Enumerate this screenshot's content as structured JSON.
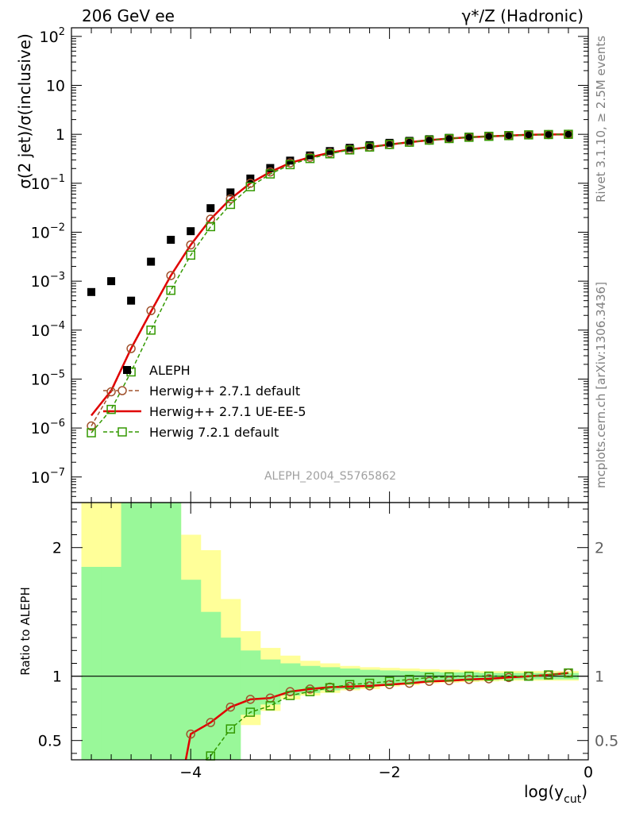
{
  "header": {
    "left": "206 GeV ee",
    "right": "γ*/Z (Hadronic)"
  },
  "side_label_top": "Rivet 3.1.10, ≥ 2.5M events",
  "side_label_bottom": "mcplots.cern.ch [arXiv:1306.3436]",
  "analysis_id": "ALEPH_2004_S5765862",
  "colors": {
    "data": "#000000",
    "herwig_pp_default": "#a0522d",
    "herwig_pp_ueee5": "#e00000",
    "herwig7_default": "#339900",
    "band_inner": "#99f899",
    "band_outer": "#ffff99"
  },
  "chart_data": [
    {
      "type": "scatter",
      "title": "",
      "ylabel": "σ(2 jet)/σ(inclusive)",
      "xlabel": "",
      "yscale": "log",
      "xlim": [
        -5.2,
        0
      ],
      "ylim": [
        3e-08,
        150
      ],
      "y_ticks": [
        {
          "v": 1e-07,
          "base": "10",
          "exp": "−7"
        },
        {
          "v": 1e-06,
          "base": "10",
          "exp": "−6"
        },
        {
          "v": 1e-05,
          "base": "10",
          "exp": "−5"
        },
        {
          "v": 0.0001,
          "base": "10",
          "exp": "−4"
        },
        {
          "v": 0.001,
          "base": "10",
          "exp": "−3"
        },
        {
          "v": 0.01,
          "base": "10",
          "exp": "−2"
        },
        {
          "v": 0.1,
          "base": "10",
          "exp": "−1"
        },
        {
          "v": 1,
          "base": "1",
          "exp": ""
        },
        {
          "v": 10,
          "base": "10",
          "exp": ""
        },
        {
          "v": 100,
          "base": "10",
          "exp": "2"
        }
      ],
      "legend_position": "lower-left",
      "series": [
        {
          "name": "ALEPH",
          "style": "square-filled",
          "x": [
            -5.0,
            -4.8,
            -4.6,
            -4.4,
            -4.2,
            -4.0,
            -3.8,
            -3.6,
            -3.4,
            -3.2,
            -3.0,
            -2.8,
            -2.6,
            -2.4,
            -2.2,
            -2.0,
            -1.8,
            -1.6,
            -1.4,
            -1.2,
            -1.0,
            -0.8,
            -0.6,
            -0.4,
            -0.2
          ],
          "y": [
            0.0006,
            0.001,
            0.0004,
            0.0025,
            0.007,
            0.0105,
            0.031,
            0.065,
            0.125,
            0.205,
            0.29,
            0.37,
            0.455,
            0.53,
            0.6,
            0.67,
            0.735,
            0.795,
            0.845,
            0.895,
            0.935,
            0.965,
            0.985,
            0.995,
            0.998
          ]
        },
        {
          "name": "Herwig++ 2.7.1 default",
          "style": "circle-dashed",
          "x": [
            -5.0,
            -4.8,
            -4.6,
            -4.4,
            -4.2,
            -4.0,
            -3.8,
            -3.6,
            -3.4,
            -3.2,
            -3.0,
            -2.8,
            -2.6,
            -2.4,
            -2.2,
            -2.0,
            -1.8,
            -1.6,
            -1.4,
            -1.2,
            -1.0,
            -0.8,
            -0.6,
            -0.4,
            -0.2
          ],
          "y": [
            1.1e-06,
            5.5e-06,
            4.2e-05,
            0.00025,
            0.0013,
            0.0055,
            0.0185,
            0.048,
            0.1,
            0.17,
            0.26,
            0.34,
            0.42,
            0.49,
            0.55,
            0.62,
            0.69,
            0.76,
            0.82,
            0.87,
            0.91,
            0.94,
            0.975,
            0.99,
            1.0
          ]
        },
        {
          "name": "Herwig++ 2.7.1 UE-EE-5",
          "style": "line-solid",
          "x": [
            -5.0,
            -4.8,
            -4.6,
            -4.4,
            -4.2,
            -4.0,
            -3.8,
            -3.6,
            -3.4,
            -3.2,
            -3.0,
            -2.8,
            -2.6,
            -2.4,
            -2.2,
            -2.0,
            -1.8,
            -1.6,
            -1.4,
            -1.2,
            -1.0,
            -0.8,
            -0.6,
            -0.4,
            -0.2
          ],
          "y": [
            1.8e-06,
            5.8e-06,
            4.2e-05,
            0.00024,
            0.0013,
            0.0055,
            0.0185,
            0.048,
            0.1,
            0.17,
            0.26,
            0.34,
            0.42,
            0.49,
            0.55,
            0.62,
            0.69,
            0.76,
            0.82,
            0.87,
            0.91,
            0.94,
            0.975,
            0.99,
            1.0
          ]
        },
        {
          "name": "Herwig 7.2.1 default",
          "style": "square-dashed",
          "x": [
            -5.0,
            -4.8,
            -4.6,
            -4.4,
            -4.2,
            -4.0,
            -3.8,
            -3.6,
            -3.4,
            -3.2,
            -3.0,
            -2.8,
            -2.6,
            -2.4,
            -2.2,
            -2.0,
            -1.8,
            -1.6,
            -1.4,
            -1.2,
            -1.0,
            -0.8,
            -0.6,
            -0.4,
            -0.2
          ],
          "y": [
            8e-07,
            2.4e-06,
            1.4e-05,
            0.0001,
            0.00065,
            0.0034,
            0.013,
            0.037,
            0.085,
            0.155,
            0.24,
            0.32,
            0.4,
            0.48,
            0.55,
            0.62,
            0.69,
            0.76,
            0.82,
            0.87,
            0.91,
            0.94,
            0.975,
            0.99,
            1.0
          ]
        }
      ]
    },
    {
      "type": "scatter",
      "title": "",
      "ylabel": "Ratio to ALEPH",
      "xlabel": "log(y",
      "xlabel_sub": "cut",
      "xlabel_end": ")",
      "xlim": [
        -5.2,
        0
      ],
      "ylim": [
        0.35,
        2.35
      ],
      "x_ticks": [
        {
          "v": -4,
          "label": "−4"
        },
        {
          "v": -2,
          "label": "−2"
        },
        {
          "v": 0,
          "label": "0"
        }
      ],
      "y_ticks": [
        {
          "v": 0.5,
          "label": "0.5"
        },
        {
          "v": 1,
          "label": "1"
        },
        {
          "v": 2,
          "label": "2"
        }
      ],
      "bands": {
        "edges": [
          -5.1,
          -4.9,
          -4.7,
          -4.5,
          -4.3,
          -4.1,
          -3.9,
          -3.7,
          -3.5,
          -3.3,
          -3.1,
          -2.9,
          -2.7,
          -2.5,
          -2.3,
          -2.1,
          -1.9,
          -1.7,
          -1.5,
          -1.3,
          -1.1,
          -0.9,
          -0.7,
          -0.5,
          -0.3,
          -0.1
        ],
        "inner_lo": [
          0.35,
          0.35,
          0.35,
          0.35,
          0.35,
          0.35,
          0.35,
          0.35,
          0.7,
          0.78,
          0.85,
          0.87,
          0.89,
          0.9,
          0.92,
          0.93,
          0.945,
          0.955,
          0.96,
          0.965,
          0.97,
          0.975,
          0.975,
          0.975,
          0.975
        ],
        "inner_hi": [
          1.85,
          1.85,
          2.35,
          2.35,
          2.35,
          1.75,
          1.5,
          1.3,
          1.2,
          1.13,
          1.1,
          1.08,
          1.07,
          1.06,
          1.05,
          1.045,
          1.04,
          1.035,
          1.03,
          1.03,
          1.025,
          1.025,
          1.025,
          1.025,
          1.025
        ],
        "outer_lo": [
          0.35,
          0.35,
          0.35,
          0.35,
          0.35,
          0.35,
          0.35,
          0.5,
          0.62,
          0.73,
          0.82,
          0.85,
          0.87,
          0.89,
          0.9,
          0.92,
          0.93,
          0.945,
          0.95,
          0.955,
          0.96,
          0.965,
          0.965,
          0.965,
          0.965
        ],
        "outer_hi": [
          2.35,
          2.35,
          2.35,
          2.35,
          2.35,
          2.1,
          1.98,
          1.6,
          1.35,
          1.22,
          1.16,
          1.12,
          1.1,
          1.08,
          1.07,
          1.065,
          1.06,
          1.055,
          1.05,
          1.045,
          1.04,
          1.04,
          1.04,
          1.04,
          1.04
        ]
      },
      "series": [
        {
          "name": "Herwig++ 2.7.1 default",
          "style": "circle-dashed",
          "x": [
            -4.0,
            -3.8,
            -3.6,
            -3.4,
            -3.2,
            -3.0,
            -2.8,
            -2.6,
            -2.4,
            -2.2,
            -2.0,
            -1.8,
            -1.6,
            -1.4,
            -1.2,
            -1.0,
            -0.8,
            -0.6,
            -0.4,
            -0.2
          ],
          "y": [
            0.55,
            0.64,
            0.76,
            0.82,
            0.83,
            0.88,
            0.9,
            0.915,
            0.92,
            0.925,
            0.935,
            0.945,
            0.96,
            0.965,
            0.975,
            0.98,
            0.99,
            1.0,
            1.01,
            1.025
          ]
        },
        {
          "name": "Herwig++ 2.7.1 UE-EE-5",
          "style": "line-solid",
          "x": [
            -4.05,
            -4.0,
            -3.8,
            -3.6,
            -3.4,
            -3.2,
            -3.0,
            -2.8,
            -2.6,
            -2.4,
            -2.2,
            -2.0,
            -1.8,
            -1.6,
            -1.4,
            -1.2,
            -1.0,
            -0.8,
            -0.6,
            -0.4,
            -0.2
          ],
          "y": [
            0.35,
            0.55,
            0.64,
            0.76,
            0.82,
            0.83,
            0.88,
            0.9,
            0.915,
            0.92,
            0.925,
            0.935,
            0.945,
            0.96,
            0.965,
            0.975,
            0.98,
            0.99,
            1.0,
            1.01,
            1.025
          ]
        },
        {
          "name": "Herwig 7.2.1 default",
          "style": "square-dashed",
          "x": [
            -3.85,
            -3.8,
            -3.6,
            -3.4,
            -3.2,
            -3.0,
            -2.8,
            -2.6,
            -2.4,
            -2.2,
            -2.0,
            -1.8,
            -1.6,
            -1.4,
            -1.2,
            -1.0,
            -0.8,
            -0.6,
            -0.4,
            -0.2
          ],
          "y": [
            0.35,
            0.38,
            0.59,
            0.72,
            0.77,
            0.85,
            0.88,
            0.91,
            0.935,
            0.945,
            0.96,
            0.975,
            0.99,
            0.995,
            1.0,
            1.0,
            1.0,
            1.0,
            1.01,
            1.025
          ]
        }
      ]
    }
  ]
}
